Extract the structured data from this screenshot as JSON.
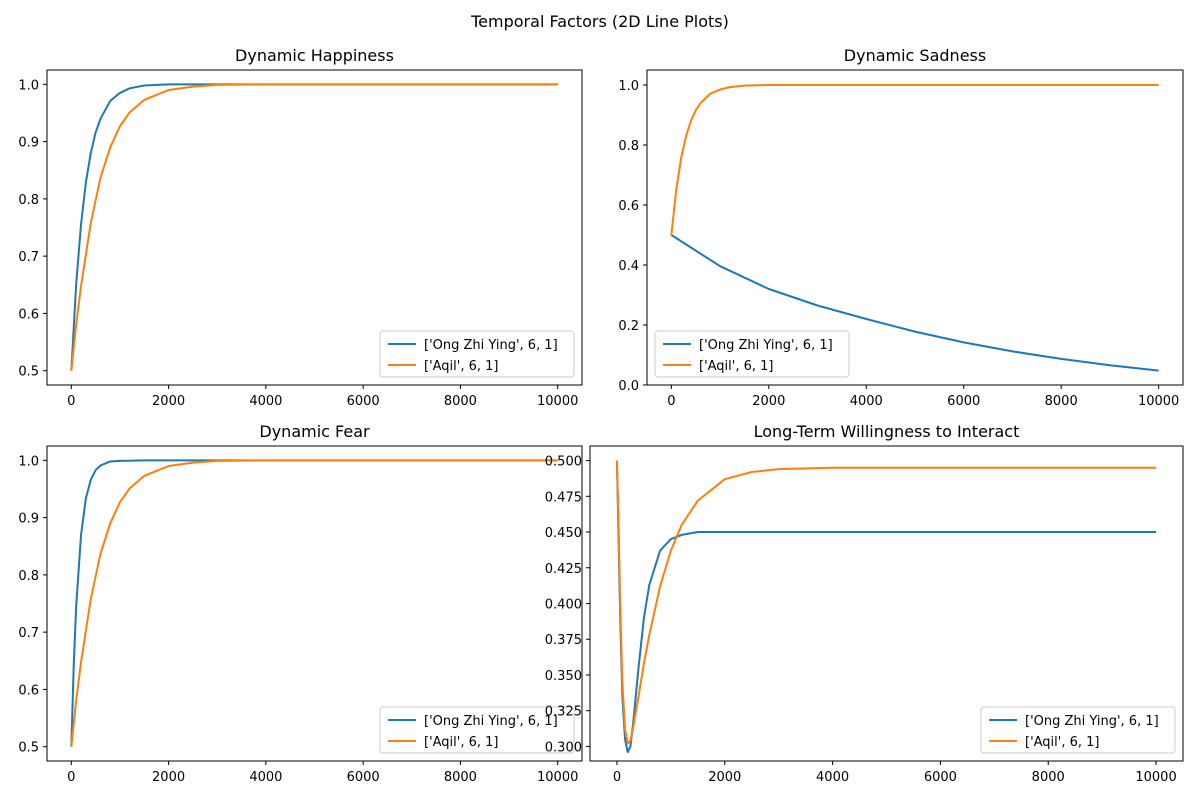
{
  "figure": {
    "title": "Temporal Factors (2D Line Plots)"
  },
  "colors": {
    "series_0": "#1f77b4",
    "series_1": "#ff7f0e",
    "axes": "#000000",
    "background": "#ffffff"
  },
  "chart_data": [
    {
      "type": "line",
      "title": "Dynamic Happiness",
      "xlabel": "",
      "ylabel": "",
      "xlim": [
        -500,
        10500
      ],
      "ylim": [
        0.475,
        1.025
      ],
      "xticks": [
        0,
        2000,
        4000,
        6000,
        8000,
        10000
      ],
      "xtick_labels": [
        "0",
        "2000",
        "4000",
        "6000",
        "8000",
        "10000"
      ],
      "yticks": [
        0.5,
        0.6,
        0.7,
        0.8,
        0.9,
        1.0
      ],
      "ytick_labels": [
        "0.5",
        "0.6",
        "0.7",
        "0.8",
        "0.9",
        "1.0"
      ],
      "grid": false,
      "legend_position": "lower right",
      "series": [
        {
          "name": "['Ong Zhi Ying', 6, 1]",
          "color": "#1f77b4",
          "x": [
            0,
            100,
            200,
            300,
            400,
            500,
            600,
            800,
            1000,
            1200,
            1500,
            2000,
            3000,
            4000,
            6000,
            8000,
            10000
          ],
          "y": [
            0.5,
            0.651,
            0.756,
            0.829,
            0.88,
            0.916,
            0.94,
            0.971,
            0.985,
            0.993,
            0.998,
            1.0,
            1.0,
            1.0,
            1.0,
            1.0,
            1.0
          ]
        },
        {
          "name": "['Aqil', 6, 1]",
          "color": "#ff7f0e",
          "x": [
            0,
            100,
            200,
            400,
            600,
            800,
            1000,
            1200,
            1500,
            2000,
            2500,
            3000,
            4000,
            6000,
            8000,
            10000
          ],
          "y": [
            0.5,
            0.581,
            0.648,
            0.758,
            0.837,
            0.89,
            0.927,
            0.951,
            0.973,
            0.99,
            0.996,
            0.999,
            1.0,
            1.0,
            1.0,
            1.0
          ]
        }
      ]
    },
    {
      "type": "line",
      "title": "Dynamic Sadness",
      "xlabel": "",
      "ylabel": "",
      "xlim": [
        -500,
        10500
      ],
      "ylim": [
        0.0,
        1.05
      ],
      "xticks": [
        0,
        2000,
        4000,
        6000,
        8000,
        10000
      ],
      "xtick_labels": [
        "0",
        "2000",
        "4000",
        "6000",
        "8000",
        "10000"
      ],
      "yticks": [
        0.0,
        0.2,
        0.4,
        0.6,
        0.8,
        1.0
      ],
      "ytick_labels": [
        "0.0",
        "0.2",
        "0.4",
        "0.6",
        "0.8",
        "1.0"
      ],
      "grid": false,
      "legend_position": "lower left",
      "series": [
        {
          "name": "['Ong Zhi Ying', 6, 1]",
          "color": "#1f77b4",
          "x": [
            0,
            1000,
            2000,
            3000,
            4000,
            5000,
            6000,
            7000,
            8000,
            9000,
            10000
          ],
          "y": [
            0.5,
            0.396,
            0.32,
            0.265,
            0.22,
            0.178,
            0.142,
            0.112,
            0.087,
            0.066,
            0.048
          ]
        },
        {
          "name": "['Aqil', 6, 1]",
          "color": "#ff7f0e",
          "x": [
            0,
            100,
            200,
            300,
            400,
            500,
            600,
            800,
            1000,
            1200,
            1500,
            2000,
            3000,
            5000,
            10000
          ],
          "y": [
            0.5,
            0.651,
            0.756,
            0.829,
            0.88,
            0.916,
            0.94,
            0.971,
            0.985,
            0.993,
            0.998,
            1.0,
            1.0,
            1.0,
            1.0
          ]
        }
      ]
    },
    {
      "type": "line",
      "title": "Dynamic Fear",
      "xlabel": "",
      "ylabel": "",
      "xlim": [
        -500,
        10500
      ],
      "ylim": [
        0.475,
        1.025
      ],
      "xticks": [
        0,
        2000,
        4000,
        6000,
        8000,
        10000
      ],
      "xtick_labels": [
        "0",
        "2000",
        "4000",
        "6000",
        "8000",
        "10000"
      ],
      "yticks": [
        0.5,
        0.6,
        0.7,
        0.8,
        0.9,
        1.0
      ],
      "ytick_labels": [
        "0.5",
        "0.6",
        "0.7",
        "0.8",
        "0.9",
        "1.0"
      ],
      "grid": false,
      "legend_position": "lower right",
      "series": [
        {
          "name": "['Ong Zhi Ying', 6, 1]",
          "color": "#1f77b4",
          "x": [
            0,
            50,
            100,
            200,
            300,
            400,
            500,
            600,
            800,
            1000,
            1500,
            2000,
            4000,
            10000
          ],
          "y": [
            0.5,
            0.643,
            0.745,
            0.87,
            0.934,
            0.966,
            0.983,
            0.991,
            0.998,
            0.999,
            1.0,
            1.0,
            1.0,
            1.0
          ]
        },
        {
          "name": "['Aqil', 6, 1]",
          "color": "#ff7f0e",
          "x": [
            0,
            100,
            200,
            400,
            600,
            800,
            1000,
            1200,
            1500,
            2000,
            2500,
            3000,
            4000,
            6000,
            10000
          ],
          "y": [
            0.5,
            0.581,
            0.648,
            0.758,
            0.837,
            0.89,
            0.927,
            0.951,
            0.973,
            0.99,
            0.996,
            0.999,
            1.0,
            1.0,
            1.0
          ]
        }
      ]
    },
    {
      "type": "line",
      "title": "Long-Term Willingness to Interact",
      "xlabel": "",
      "ylabel": "",
      "xlim": [
        -500,
        10500
      ],
      "ylim": [
        0.2898,
        0.5102
      ],
      "xticks": [
        0,
        2000,
        4000,
        6000,
        8000,
        10000
      ],
      "xtick_labels": [
        "0",
        "2000",
        "4000",
        "6000",
        "8000",
        "10000"
      ],
      "yticks": [
        0.3,
        0.325,
        0.35,
        0.375,
        0.4,
        0.425,
        0.45,
        0.475,
        0.5
      ],
      "ytick_labels": [
        "0.300",
        "0.325",
        "0.350",
        "0.375",
        "0.400",
        "0.425",
        "0.450",
        "0.475",
        "0.500"
      ],
      "grid": false,
      "legend_position": "lower right",
      "series": [
        {
          "name": "['Ong Zhi Ying', 6, 1]",
          "color": "#1f77b4",
          "x": [
            0,
            30,
            60,
            100,
            150,
            200,
            250,
            300,
            400,
            500,
            600,
            800,
            1000,
            1200,
            1500,
            2000,
            3000,
            5000,
            10000
          ],
          "y": [
            0.5,
            0.445,
            0.39,
            0.335,
            0.305,
            0.296,
            0.3,
            0.316,
            0.355,
            0.39,
            0.413,
            0.437,
            0.445,
            0.448,
            0.45,
            0.45,
            0.45,
            0.45,
            0.45
          ]
        },
        {
          "name": "['Aqil', 6, 1]",
          "color": "#ff7f0e",
          "x": [
            0,
            30,
            60,
            100,
            150,
            200,
            250,
            300,
            400,
            500,
            600,
            800,
            1000,
            1200,
            1500,
            2000,
            2500,
            3000,
            4000,
            5000,
            10000
          ],
          "y": [
            0.5,
            0.455,
            0.4,
            0.345,
            0.312,
            0.302,
            0.304,
            0.313,
            0.335,
            0.358,
            0.378,
            0.412,
            0.437,
            0.455,
            0.472,
            0.487,
            0.492,
            0.494,
            0.495,
            0.495,
            0.495
          ]
        }
      ]
    }
  ]
}
